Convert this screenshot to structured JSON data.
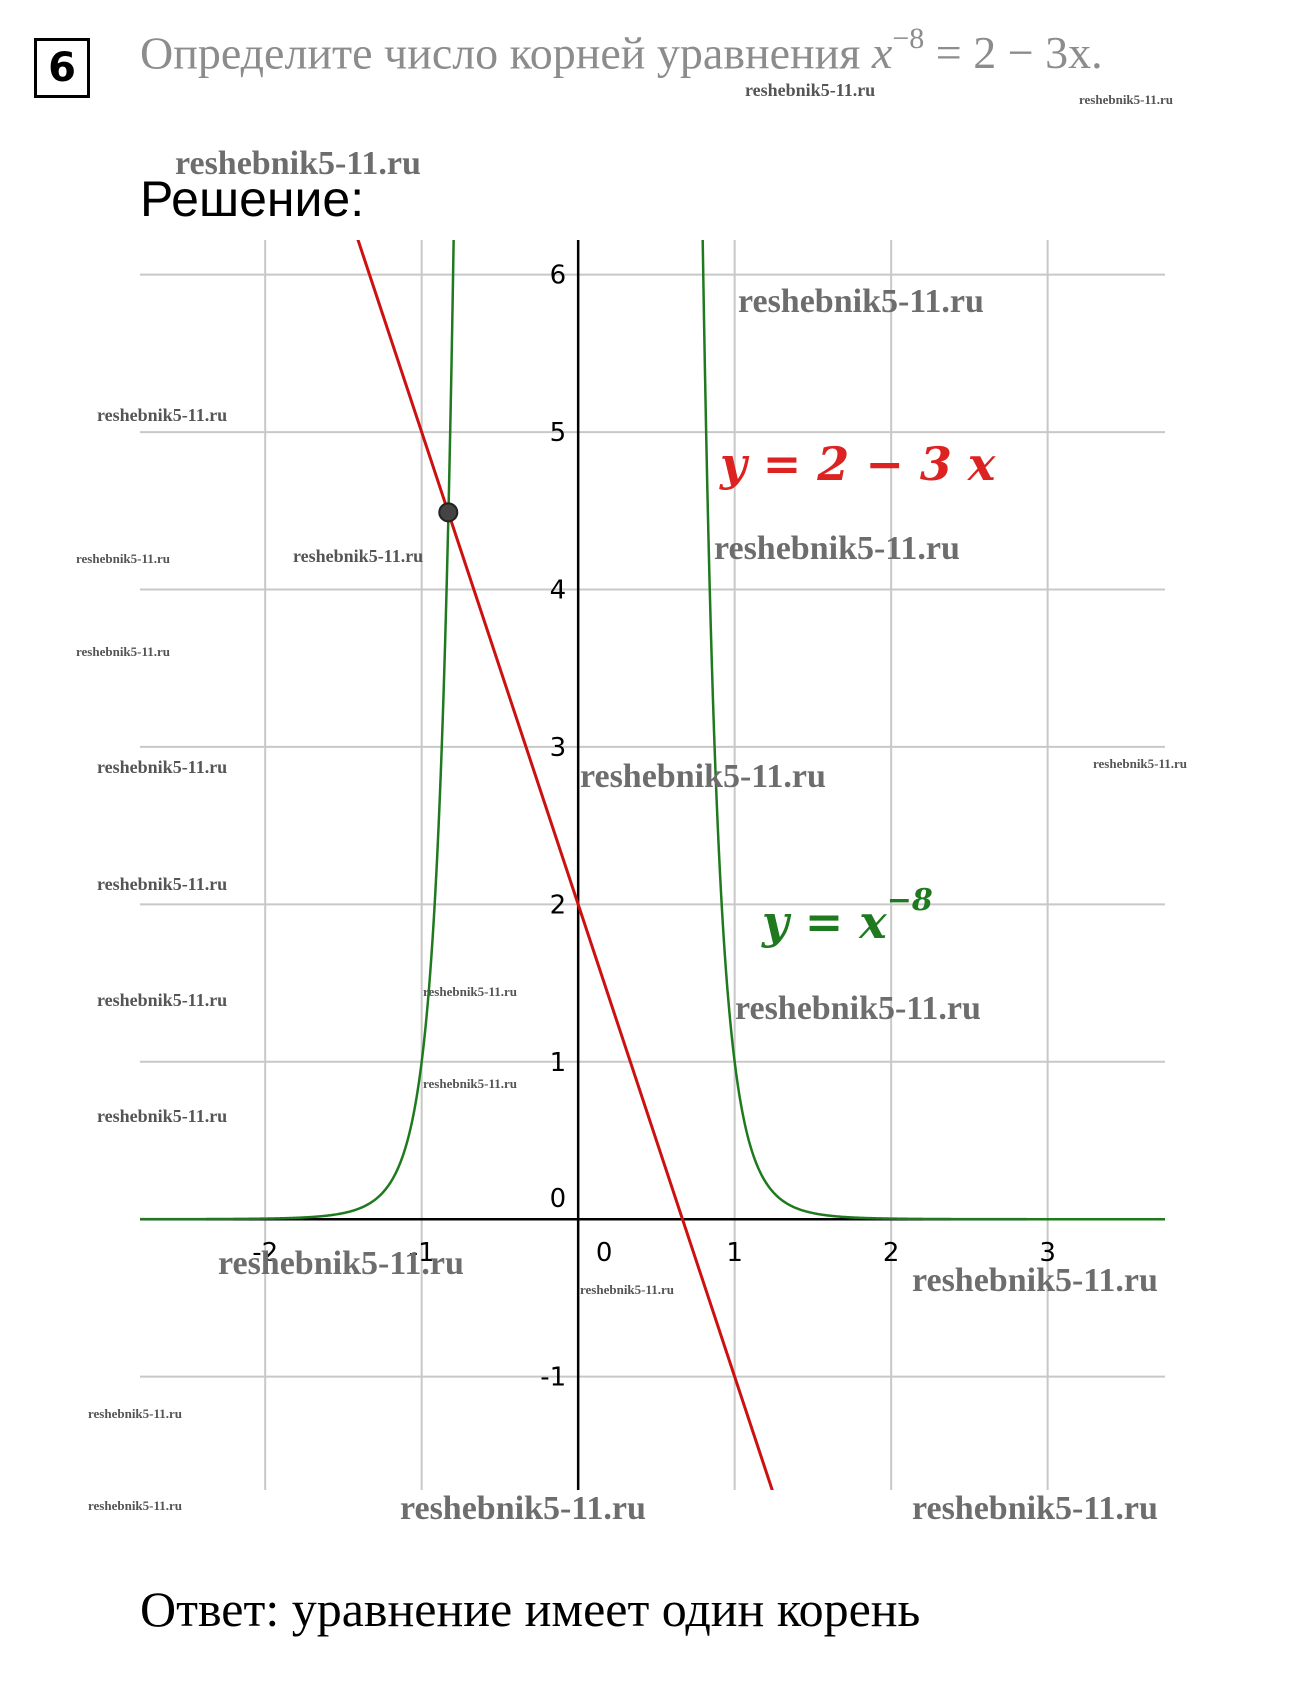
{
  "task": {
    "number": "6",
    "text": "Определите число корней уравнения",
    "eq_lhs": "x",
    "eq_exp": "−8",
    "eq_rhs": " = 2 − 3x."
  },
  "solution_label": "Решение:",
  "answer": "Ответ: уравнение имеет один корень",
  "watermark_text": "reshebnik5-11.ru",
  "chart_data": {
    "type": "line",
    "title": "",
    "xlabel": "",
    "ylabel": "",
    "xlim": [
      -2.8,
      3.75
    ],
    "ylim": [
      -1.72,
      6.22
    ],
    "x_ticks": [
      -2,
      -1,
      0,
      1,
      2,
      3
    ],
    "y_ticks": [
      -1,
      0,
      1,
      2,
      3,
      4,
      5,
      6
    ],
    "x_tick_labels": [
      "-2",
      "-1",
      "0",
      "1",
      "2",
      "3"
    ],
    "y_tick_labels": [
      "-1",
      "0",
      "1",
      "2",
      "3",
      "4",
      "5",
      "6"
    ],
    "grid": true,
    "series": [
      {
        "name": "y = 2 − 3 x",
        "formula": "2 - 3x",
        "color": "#cc1111",
        "x": [
          -1.45,
          1.25
        ],
        "y": [
          6.35,
          -1.75
        ]
      },
      {
        "name": "y = x⁻⁸",
        "formula": "x^-8",
        "color": "#1f7a1f",
        "x": [
          -2.8,
          -2.0,
          -1.5,
          -1.2,
          -1.0,
          -0.9,
          -0.85,
          -0.8,
          -0.8,
          0.8,
          0.85,
          0.9,
          1.0,
          1.2,
          1.5,
          2.0,
          3.75
        ],
        "y": [
          0.0003,
          0.0039,
          0.039,
          0.233,
          1.0,
          2.32,
          3.68,
          5.96,
          5.96,
          5.96,
          3.68,
          2.32,
          1.0,
          0.233,
          0.039,
          0.0039,
          0.0
        ]
      }
    ],
    "intersection": {
      "x": -0.83,
      "y": 4.49
    },
    "labels": {
      "line": "y = 2 − 3 x",
      "curve_base": "y = x",
      "curve_exp": "−8"
    }
  },
  "colors": {
    "line": "#cc1111",
    "curve": "#1f7a1f",
    "grid": "#c8c8c8",
    "axis": "#000000"
  }
}
